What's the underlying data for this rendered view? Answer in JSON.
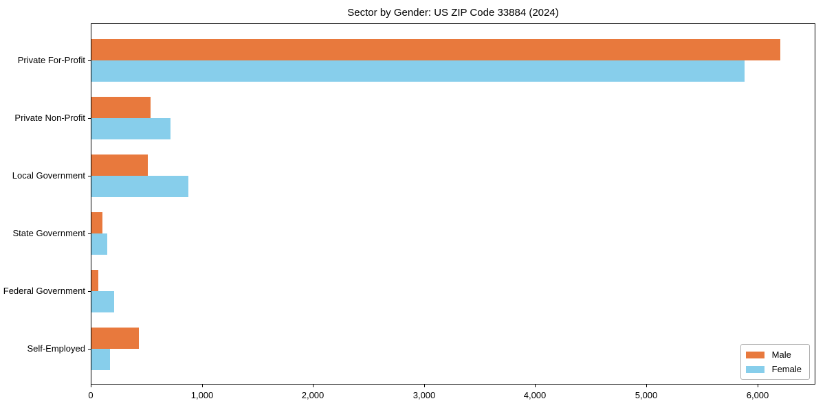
{
  "chart_data": {
    "type": "bar",
    "orientation": "horizontal",
    "title": "Sector by Gender: US ZIP Code 33884 (2024)",
    "categories": [
      "Private For-Profit",
      "Private Non-Profit",
      "Local Government",
      "State Government",
      "Federal Government",
      "Self-Employed"
    ],
    "series": [
      {
        "name": "Male",
        "color": "#e8793d",
        "values": [
          6200,
          530,
          510,
          100,
          60,
          430
        ]
      },
      {
        "name": "Female",
        "color": "#87ceeb",
        "values": [
          5880,
          710,
          870,
          140,
          205,
          170
        ]
      }
    ],
    "xlabel": "",
    "ylabel": "",
    "xlim": [
      0,
      6510
    ],
    "xticks": [
      0,
      1000,
      2000,
      3000,
      4000,
      5000,
      6000
    ],
    "xtick_labels": [
      "0",
      "1,000",
      "2,000",
      "3,000",
      "4,000",
      "5,000",
      "6,000"
    ],
    "grid": false,
    "legend": {
      "position": "lower right"
    },
    "axis_color": "#000000",
    "background_color": "#ffffff"
  }
}
